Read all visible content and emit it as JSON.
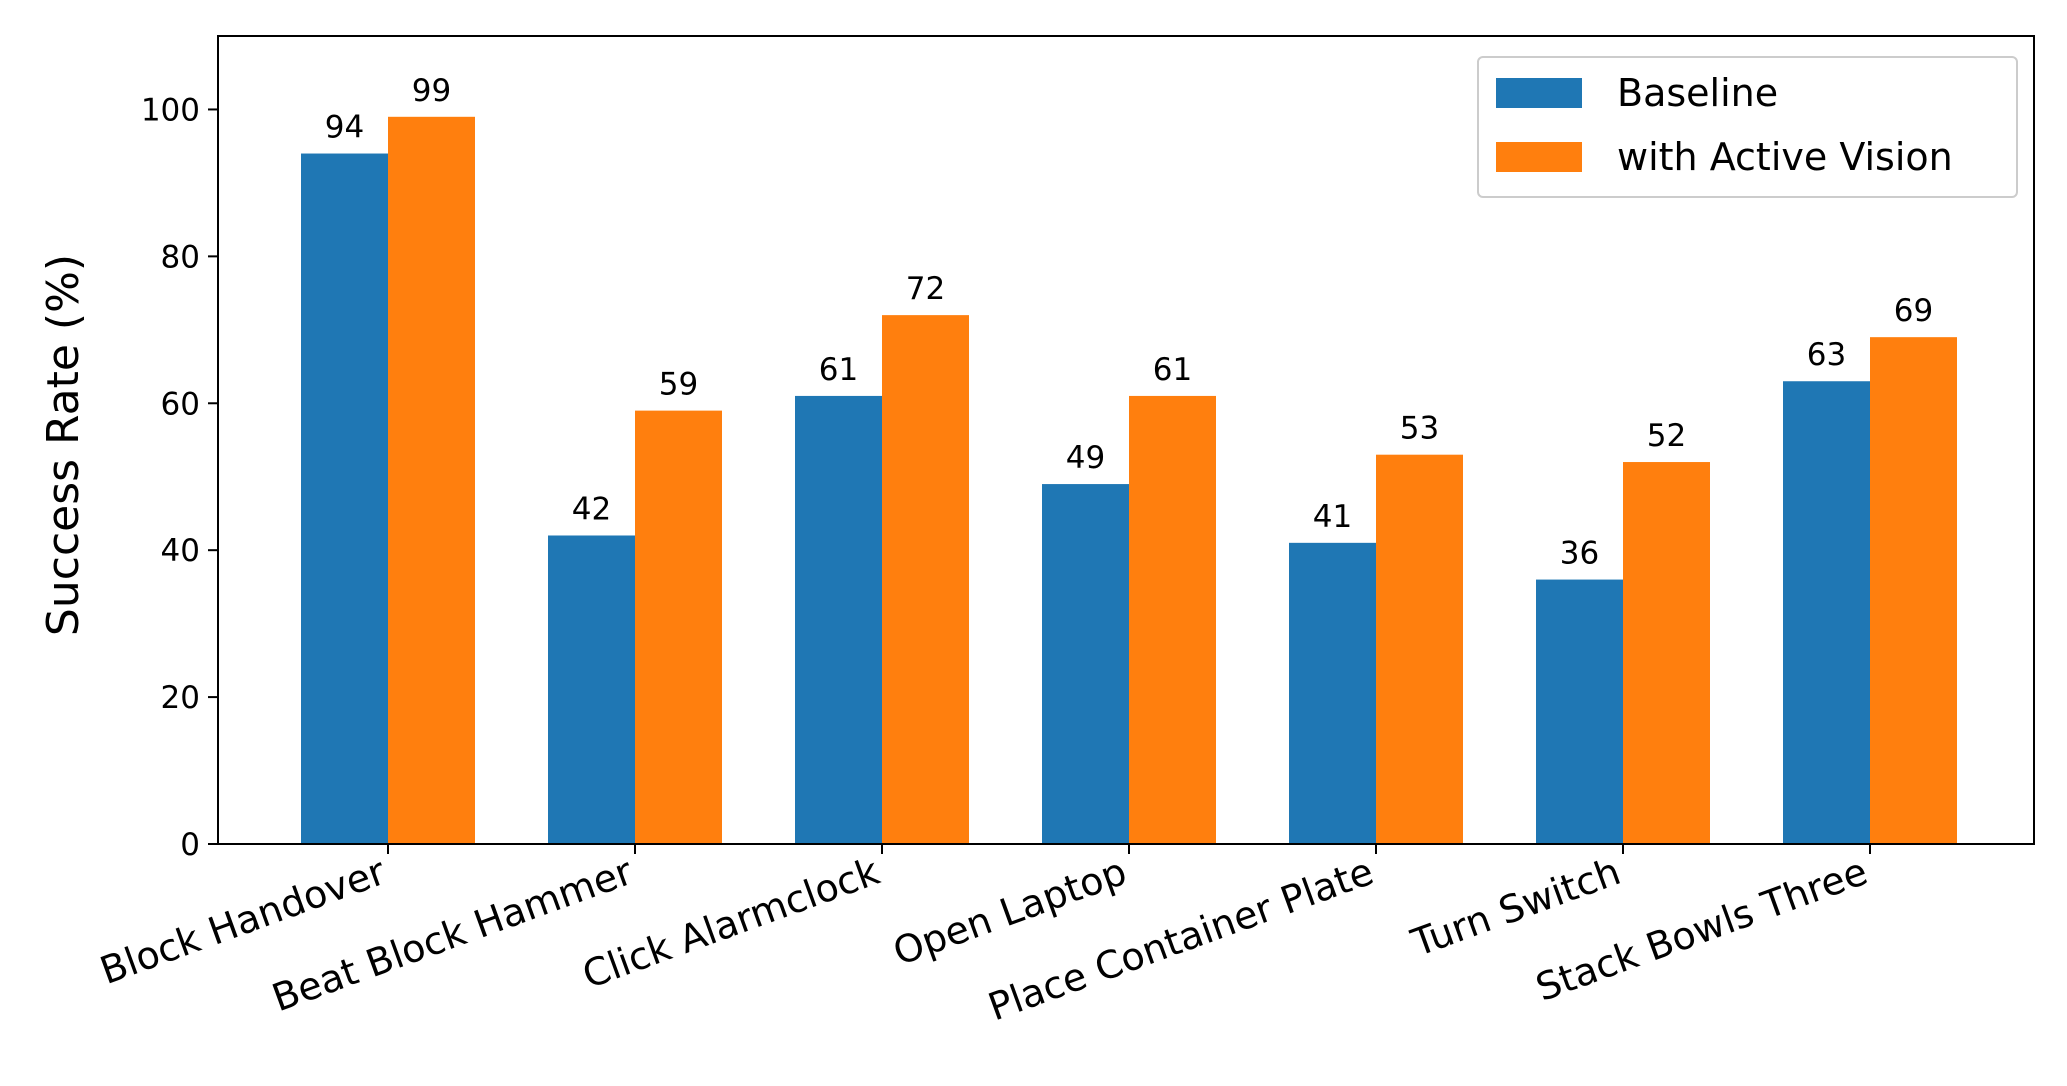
{
  "chart_data": {
    "type": "bar",
    "title": "",
    "xlabel": "",
    "ylabel": "Success Rate (%)",
    "ylim": [
      0,
      110
    ],
    "yticks": [
      0,
      20,
      40,
      60,
      80,
      100
    ],
    "grid": false,
    "legend_position": "top-right",
    "categories": [
      "Block Handover",
      "Beat Block Hammer",
      "Click Alarmclock",
      "Open Laptop",
      "Place Container Plate",
      "Turn Switch",
      "Stack Bowls Three"
    ],
    "series": [
      {
        "name": "Baseline",
        "color": "#1f77b4",
        "values": [
          94,
          42,
          61,
          49,
          41,
          36,
          63
        ]
      },
      {
        "name": "with Active Vision",
        "color": "#ff7f0e",
        "values": [
          99,
          59,
          72,
          61,
          53,
          52,
          69
        ]
      }
    ]
  }
}
